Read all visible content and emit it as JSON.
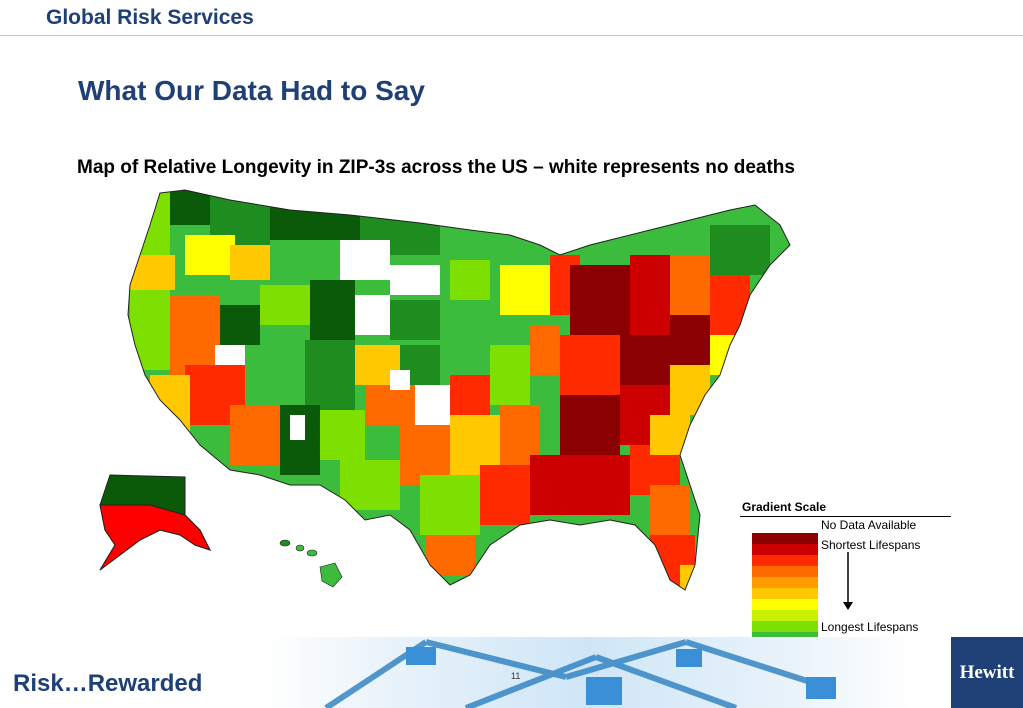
{
  "header": {
    "title": "Global Risk Services"
  },
  "slide": {
    "title": "What Our Data Had to Say",
    "subtitle": "Map of Relative Longevity in ZIP-3s across the US – white represents no deaths"
  },
  "legend": {
    "title": "Gradient Scale",
    "no_data": "No Data Available",
    "shortest": "Shortest Lifespans",
    "longest": "Longest Lifespans",
    "colors": [
      "#8b0000",
      "#cc0000",
      "#ff2a00",
      "#ff6a00",
      "#ff9a00",
      "#ffc800",
      "#ffff00",
      "#c8f000",
      "#7ee000",
      "#3cbc3c",
      "#1e8c1e",
      "#0a5a0a"
    ]
  },
  "footer": {
    "tagline": "Risk…Rewarded",
    "page_number": "11",
    "logo": "Hewitt"
  }
}
